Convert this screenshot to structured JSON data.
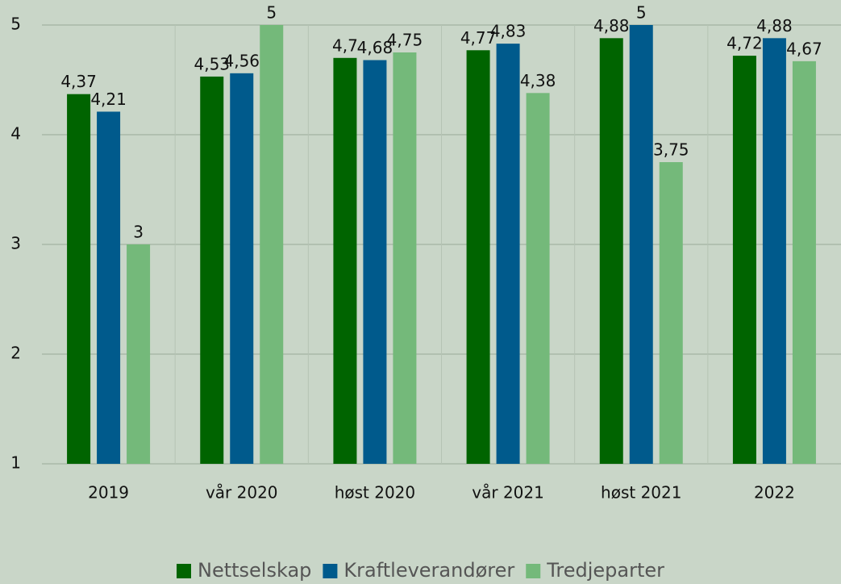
{
  "chart_data": {
    "type": "bar",
    "categories": [
      "2019",
      "vår 2020",
      "høst 2020",
      "vår 2021",
      "høst 2021",
      "2022"
    ],
    "series": [
      {
        "name": "Nettselskap",
        "color": "#006400",
        "values": [
          4.37,
          4.53,
          4.7,
          4.77,
          4.88,
          4.72
        ],
        "value_labels": [
          "4,37",
          "4,53",
          "4,7",
          "4,77",
          "4,88",
          "4,72"
        ]
      },
      {
        "name": "Kraftleverandører",
        "color": "#005a8c",
        "values": [
          4.21,
          4.56,
          4.68,
          4.83,
          5,
          4.88
        ],
        "value_labels": [
          "4,21",
          "4,56",
          "4,68",
          "4,83",
          "5",
          "4,88"
        ]
      },
      {
        "name": "Tredjeparter",
        "color": "#74b97a",
        "values": [
          3,
          5,
          4.75,
          4.38,
          3.75,
          4.67
        ],
        "value_labels": [
          "3",
          "5",
          "4,75",
          "4,38",
          "3,75",
          "4,67"
        ]
      }
    ],
    "ylim": [
      1,
      5
    ],
    "yticks": [
      1,
      2,
      3,
      4,
      5
    ],
    "grid": true,
    "legend": "bottom"
  }
}
